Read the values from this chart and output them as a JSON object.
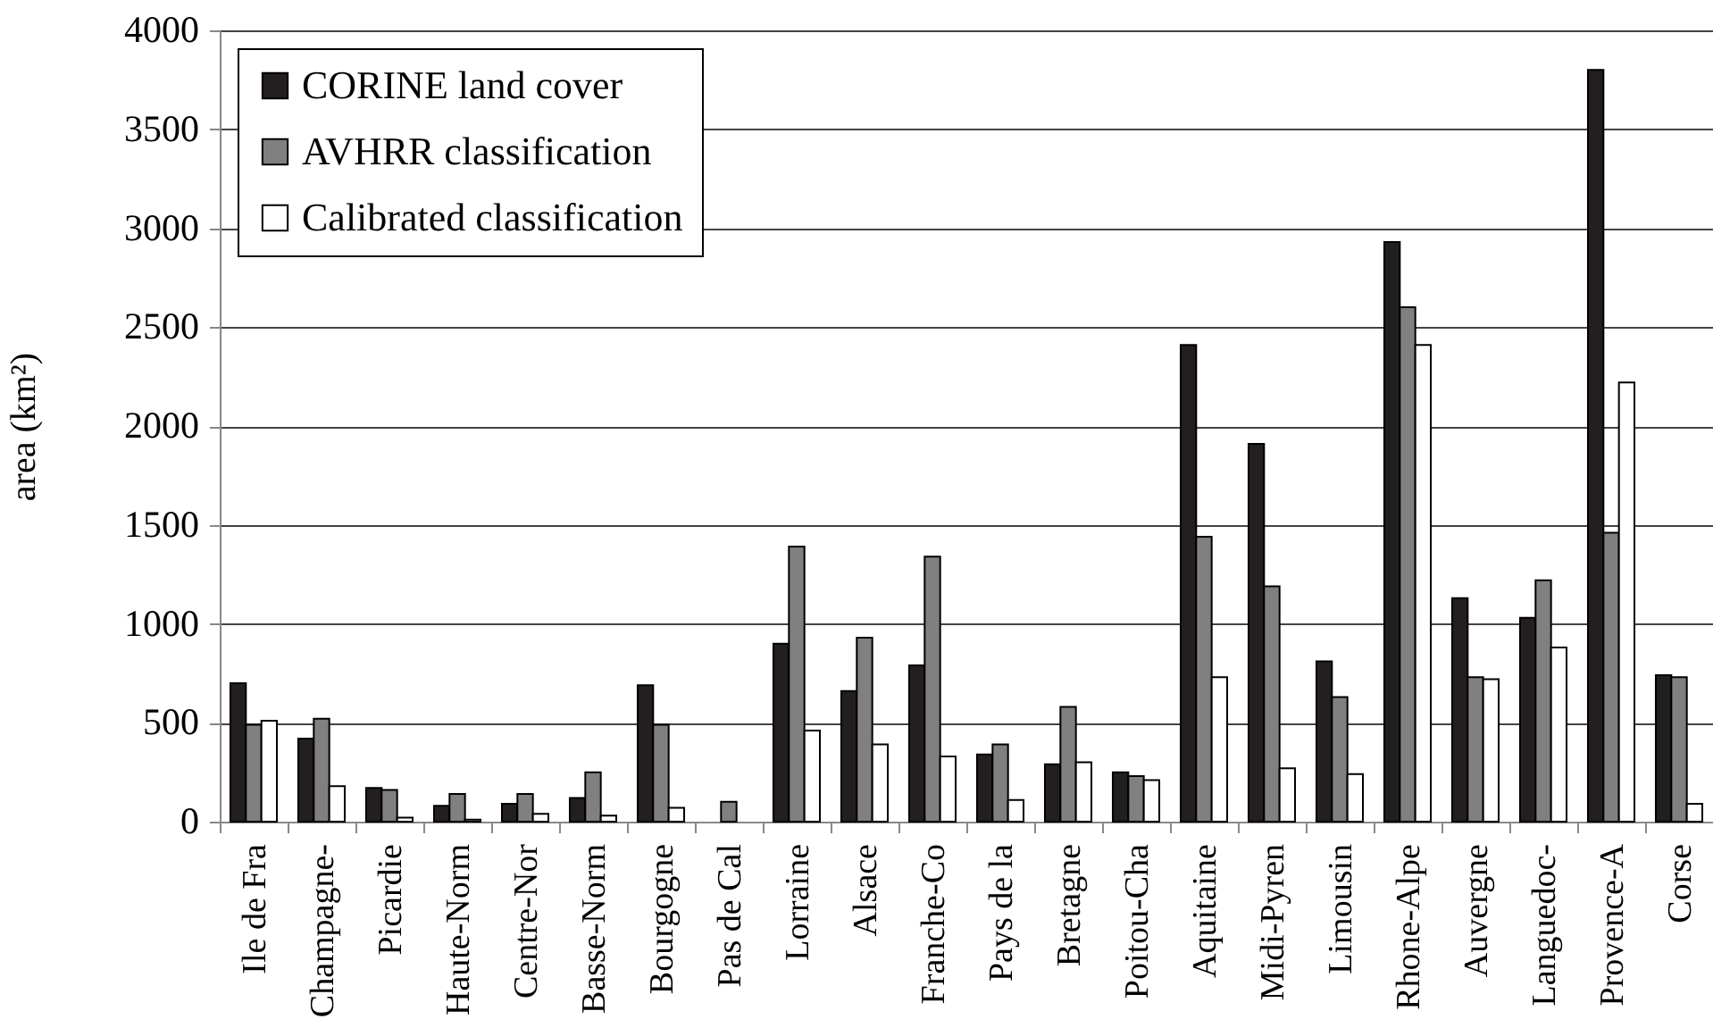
{
  "chart_data": {
    "type": "bar",
    "ylabel": "area (km²)",
    "categories": [
      "Ile de Fra",
      "Champagne-",
      "Picardie",
      "Haute-Norm",
      "Centre-Nor",
      "Basse-Norm",
      "Bourgogne",
      "Pas de Cal",
      "Lorraine",
      "Alsace",
      "Franche-Co",
      "Pays de la",
      "Bretagne",
      "Poitou-Cha",
      "Aquitaine",
      "Midi-Pyren",
      "Limousin",
      "Rhone-Alpe",
      "Auvergne",
      "Languedoc-",
      "Provence-A",
      "Corse"
    ],
    "series": [
      {
        "name": "CORINE land cover",
        "color": "#231f20",
        "values": [
          700,
          420,
          170,
          80,
          90,
          120,
          690,
          null,
          900,
          660,
          790,
          340,
          290,
          250,
          2410,
          1910,
          810,
          2930,
          1130,
          1030,
          3800,
          740
        ]
      },
      {
        "name": "AVHRR classification",
        "color": "#808080",
        "values": [
          490,
          520,
          160,
          140,
          140,
          250,
          490,
          100,
          1390,
          930,
          1340,
          390,
          580,
          230,
          1440,
          1190,
          630,
          2600,
          730,
          1220,
          1460,
          730
        ]
      },
      {
        "name": "Calibrated classification",
        "color": "#ffffff",
        "values": [
          510,
          180,
          20,
          10,
          40,
          30,
          70,
          null,
          460,
          390,
          330,
          110,
          300,
          210,
          730,
          270,
          240,
          2410,
          720,
          880,
          2220,
          90
        ]
      }
    ],
    "ylim": [
      0,
      4000
    ],
    "yticks": [
      0,
      500,
      1000,
      1500,
      2000,
      2500,
      3000,
      3500,
      4000
    ],
    "grid": "y",
    "legend": "top left"
  }
}
